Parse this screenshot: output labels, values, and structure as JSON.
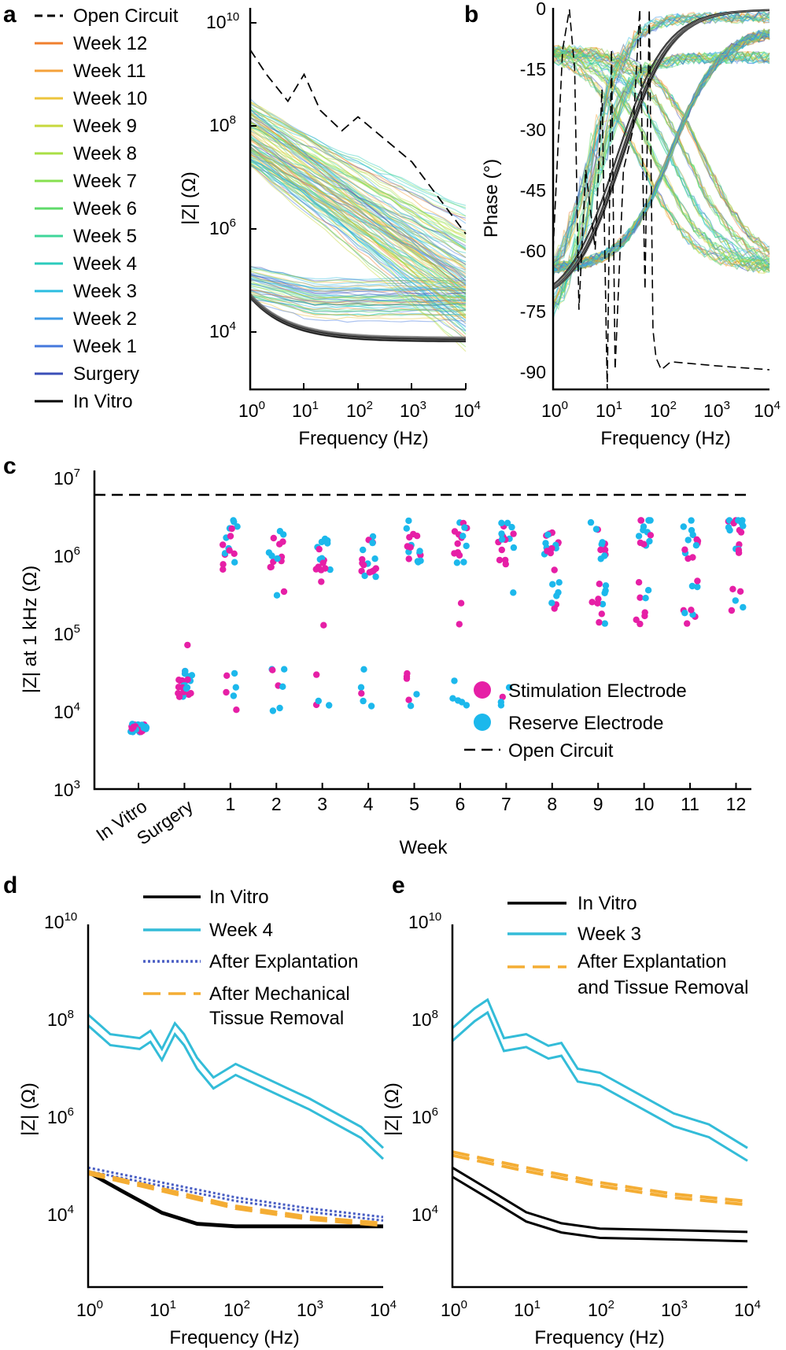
{
  "panels": {
    "a": {
      "letter": "a",
      "xlabel": "Frequency (Hz)",
      "ylabel": "|Z| (Ω)",
      "xlim": [
        1,
        10000
      ],
      "ylim": [
        1000,
        10000000000
      ],
      "x_ticks": [
        "0",
        "1",
        "2",
        "3",
        "4"
      ],
      "y_ticks": [
        "4",
        "6",
        "8",
        "10"
      ]
    },
    "b": {
      "letter": "b",
      "xlabel": "Frequency (Hz)",
      "ylabel": "Phase (°)",
      "y_ticks": [
        "0",
        "-15",
        "-30",
        "-45",
        "-60",
        "-75",
        "-90"
      ],
      "x_ticks": [
        "0",
        "1",
        "2",
        "3",
        "4"
      ]
    },
    "c": {
      "letter": "c",
      "xlabel": "Week",
      "ylabel": "|Z| at 1 kHz (Ω)",
      "y_ticks": [
        "3",
        "4",
        "5",
        "6",
        "7"
      ],
      "categories": [
        "In Vitro",
        "Surgery",
        "1",
        "2",
        "3",
        "4",
        "5",
        "6",
        "7",
        "8",
        "9",
        "10",
        "11",
        "12"
      ],
      "legend": [
        "Stimulation Electrode",
        "Reserve Electrode",
        "Open Circuit"
      ]
    },
    "d": {
      "letter": "d",
      "xlabel": "Frequency (Hz)",
      "ylabel": "|Z| (Ω)",
      "legend": [
        "In Vitro",
        "Week 4",
        "After Explantation",
        "After Mechanical",
        "Tissue Removal"
      ],
      "y_ticks": [
        "4",
        "6",
        "8",
        "10"
      ],
      "x_ticks": [
        "0",
        "1",
        "2",
        "3",
        "4"
      ]
    },
    "e": {
      "letter": "e",
      "xlabel": "Frequency (Hz)",
      "ylabel": "|Z| (Ω)",
      "legend": [
        "In Vitro",
        "Week 3",
        "After Explantation",
        "and Tissue Removal"
      ],
      "y_ticks": [
        "4",
        "6",
        "8",
        "10"
      ],
      "x_ticks": [
        "0",
        "1",
        "2",
        "3",
        "4"
      ]
    }
  },
  "legend_a": [
    {
      "label": "Open Circuit",
      "color": "#000000",
      "dash": true
    },
    {
      "label": "Week 12",
      "color": "#f07f2e"
    },
    {
      "label": "Week 11",
      "color": "#f4a13a"
    },
    {
      "label": "Week 10",
      "color": "#ecc43c"
    },
    {
      "label": "Week 9",
      "color": "#c7d83c"
    },
    {
      "label": "Week 8",
      "color": "#a9df45"
    },
    {
      "label": "Week 7",
      "color": "#86e04f"
    },
    {
      "label": "Week 6",
      "color": "#5fda6a"
    },
    {
      "label": "Week 5",
      "color": "#3fd69a"
    },
    {
      "label": "Week 4",
      "color": "#2ccbbd"
    },
    {
      "label": "Week 3",
      "color": "#2bbde0"
    },
    {
      "label": "Week 2",
      "color": "#3e9ae6"
    },
    {
      "label": "Week 1",
      "color": "#4478dd"
    },
    {
      "label": "Surgery",
      "color": "#3b4fb8"
    },
    {
      "label": "In Vitro",
      "color": "#000000"
    }
  ],
  "base": "10",
  "colors": {
    "stim": "#e61fa6",
    "reserve": "#1cb8ec",
    "week_teal": "#33bcd8",
    "explant_blue": "#4a5fc4",
    "orange": "#f4ad34"
  },
  "chart_data": [
    {
      "type": "line",
      "title": "a",
      "xscale": "log",
      "yscale": "log",
      "xlim": [
        1,
        10000
      ],
      "ylim": [
        1000,
        10000000000
      ],
      "xlabel": "Frequency (Hz)",
      "ylabel": "|Z| (Ω)",
      "series": [
        {
          "name": "Open Circuit",
          "x": [
            1,
            2,
            5,
            10,
            20,
            50,
            100,
            1000,
            10000
          ],
          "values": [
            3000000000,
            1000000000,
            300000000,
            1000000000,
            200000000,
            80000000,
            150000000,
            20000000,
            800000
          ]
        },
        {
          "name": "In Vitro",
          "x": [
            1,
            3,
            10,
            30,
            100,
            1000,
            10000
          ],
          "values": [
            50000,
            20000,
            10000,
            8000,
            7000,
            7000,
            7000
          ]
        }
      ]
    },
    {
      "type": "line",
      "title": "b",
      "xscale": "log",
      "xlim": [
        1,
        10000
      ],
      "ylim": [
        -95,
        0
      ],
      "xlabel": "Frequency (Hz)",
      "ylabel": "Phase (°)",
      "series": [
        {
          "name": "In Vitro",
          "x": [
            1,
            3,
            10,
            30,
            100,
            300,
            1000,
            3000,
            10000
          ],
          "values": [
            -72,
            -65,
            -48,
            -27,
            -11,
            -4,
            -1,
            -0.5,
            -0.3
          ]
        }
      ]
    },
    {
      "type": "scatter",
      "title": "c",
      "yscale": "log",
      "ylim": [
        1000,
        10000000
      ],
      "xlabel": "Week",
      "ylabel": "|Z| at 1 kHz (Ω)",
      "categories": [
        "In Vitro",
        "Surgery",
        "1",
        "2",
        "3",
        "4",
        "5",
        "6",
        "7",
        "8",
        "9",
        "10",
        "11",
        "12"
      ],
      "open_circuit": 6000000,
      "series": [
        {
          "name": "Stimulation Electrode",
          "median_values": [
            6000,
            22000,
            1200000,
            1300000,
            800000,
            900000,
            1300000,
            1400000,
            1300000,
            1200000,
            1500000,
            1900000,
            1400000,
            2000000
          ]
        },
        {
          "name": "Reserve Electrode",
          "median_values": [
            6000,
            22000,
            1500000,
            1400000,
            900000,
            1000000,
            1500000,
            1500000,
            1400000,
            1500000,
            1600000,
            2000000,
            1600000,
            2100000
          ]
        }
      ]
    },
    {
      "type": "line",
      "title": "d",
      "xscale": "log",
      "yscale": "log",
      "xlim": [
        1,
        10000
      ],
      "ylim": [
        1000,
        10000000000
      ],
      "series": [
        {
          "name": "In Vitro",
          "x": [
            1,
            3,
            10,
            30,
            100,
            1000,
            10000
          ],
          "values": [
            100000,
            40000,
            15000,
            9000,
            8000,
            8000,
            8000
          ]
        },
        {
          "name": "Week 4",
          "x": [
            1,
            2,
            5,
            7,
            10,
            15,
            20,
            30,
            50,
            100,
            1000,
            5000,
            10000
          ],
          "values": [
            150000000,
            60000000,
            50000000,
            70000000,
            30000000,
            100000000,
            60000000,
            20000000,
            8000000,
            15000000,
            3000000,
            800000,
            300000
          ]
        },
        {
          "name": "After Explantation",
          "x": [
            1,
            10,
            100,
            1000,
            10000
          ],
          "values": [
            120000,
            60000,
            30000,
            18000,
            12000
          ]
        },
        {
          "name": "After Mechanical Tissue Removal",
          "x": [
            1,
            10,
            100,
            1000,
            10000
          ],
          "values": [
            100000,
            45000,
            20000,
            12000,
            9000
          ]
        }
      ]
    },
    {
      "type": "line",
      "title": "e",
      "xscale": "log",
      "yscale": "log",
      "xlim": [
        1,
        10000
      ],
      "ylim": [
        1000,
        10000000000
      ],
      "series": [
        {
          "name": "In Vitro",
          "x": [
            1,
            3,
            10,
            30,
            100,
            1000,
            10000
          ],
          "values": [
            120000,
            45000,
            15000,
            9000,
            7000,
            6500,
            6000
          ]
        },
        {
          "name": "Week 3",
          "x": [
            1,
            2,
            3,
            5,
            10,
            20,
            30,
            50,
            100,
            1000,
            3000,
            10000
          ],
          "values": [
            80000000,
            200000000,
            300000000,
            50000000,
            60000000,
            35000000,
            40000000,
            12000000,
            10000000,
            1500000,
            900000,
            300000
          ]
        },
        {
          "name": "After Explantation and Tissue Removal",
          "x": [
            1,
            10,
            100,
            1000,
            10000
          ],
          "values": [
            250000,
            120000,
            60000,
            35000,
            25000
          ]
        }
      ]
    }
  ]
}
